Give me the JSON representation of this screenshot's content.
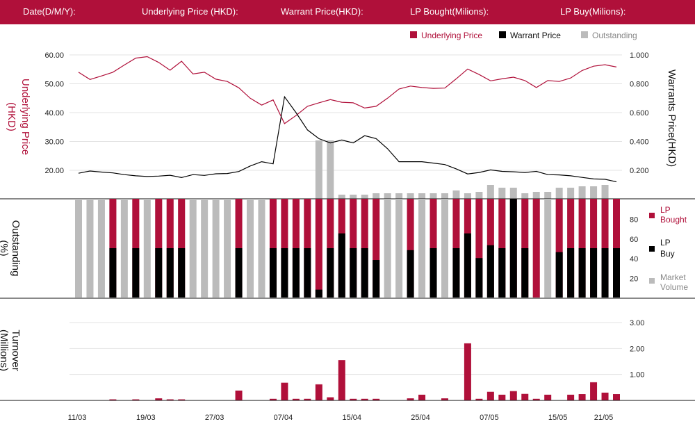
{
  "header": {
    "date_label": "Date(D/M/Y):",
    "underlying_label": "Underlying Price (HKD):",
    "warrant_label": "Warrant  Price(HKD):",
    "lp_bought_label": "LP Bought(Milions):",
    "lp_buy_label": "LP Buy(Milions):"
  },
  "colors": {
    "underlying": "#b0103a",
    "warrant": "#000000",
    "outstanding": "#bbbbbb",
    "header_bg": "#b0103a"
  },
  "chart_data": [
    {
      "type": "line",
      "name": "price-panel",
      "legend": [
        "Underlying Price",
        "Warrant  Price",
        "Outstanding"
      ],
      "legend_position": "top-right",
      "ylabel_left": "Underlying Price (HKD)",
      "ylabel_right": "Warrants  Price(HKD)",
      "yticks_left": [
        "60.00",
        "50.00",
        "40.00",
        "30.00",
        "20.00"
      ],
      "yticks_right": [
        "1.000",
        "0.800",
        "0.600",
        "0.400",
        "0.200"
      ],
      "ylim_left": [
        10,
        60
      ],
      "ylim_right": [
        0.05,
        1.0
      ],
      "series": [
        {
          "name": "Underlying Price",
          "axis": "left",
          "values": [
            54.0,
            51.5,
            52.7,
            54.0,
            56.5,
            58.9,
            59.4,
            57.4,
            54.7,
            57.8,
            53.4,
            54.0,
            51.6,
            50.8,
            48.6,
            45.0,
            42.6,
            44.4,
            36.2,
            39.0,
            42.2,
            43.4,
            44.5,
            43.6,
            43.4,
            41.6,
            42.2,
            45.0,
            48.2,
            49.2,
            48.7,
            48.4,
            48.5,
            51.7,
            55.1,
            53.2,
            51.0,
            51.7,
            52.3,
            51.1,
            48.7,
            51.1,
            50.8,
            52.0,
            54.6,
            56.1,
            56.6,
            55.8
          ]
        },
        {
          "name": "Warrant  Price",
          "axis": "right",
          "values": [
            0.18,
            0.195,
            0.188,
            0.182,
            0.17,
            0.162,
            0.157,
            0.16,
            0.166,
            0.15,
            0.17,
            0.165,
            0.176,
            0.178,
            0.192,
            0.23,
            0.26,
            0.245,
            0.71,
            0.6,
            0.48,
            0.42,
            0.39,
            0.41,
            0.39,
            0.44,
            0.42,
            0.35,
            0.26,
            0.26,
            0.26,
            0.25,
            0.24,
            0.21,
            0.175,
            0.185,
            0.203,
            0.193,
            0.19,
            0.185,
            0.193,
            0.17,
            0.168,
            0.162,
            0.151,
            0.14,
            0.138,
            0.12
          ]
        }
      ]
    },
    {
      "type": "bar",
      "name": "outstanding-panel",
      "ylabel": "Outstanding (%)",
      "yticks": [
        "80",
        "60",
        "40",
        "20"
      ],
      "ylim": [
        0,
        100
      ],
      "legend": [
        "LP Bought",
        "LP Buy",
        "Market Volume"
      ],
      "legend_position": "right",
      "market_volume": [
        100,
        100,
        100,
        100,
        100,
        100,
        100,
        100,
        100,
        100,
        100,
        100,
        100,
        100,
        100,
        100,
        100,
        100,
        100,
        100,
        100,
        100,
        100,
        100,
        100,
        100,
        100,
        100,
        100,
        100,
        100,
        100,
        100,
        100,
        100,
        100,
        100,
        100,
        100,
        100,
        100,
        100,
        100,
        100,
        100,
        100,
        100,
        100
      ],
      "lp_bought": [
        0,
        0,
        0,
        100,
        0,
        100,
        0,
        100,
        100,
        100,
        0,
        0,
        0,
        0,
        100,
        0,
        0,
        100,
        100,
        100,
        100,
        100,
        100,
        100,
        100,
        100,
        100,
        0,
        0,
        100,
        0,
        100,
        0,
        100,
        100,
        100,
        100,
        100,
        100,
        100,
        100,
        0,
        100,
        100,
        100,
        100,
        100,
        100
      ],
      "lp_buy": [
        0,
        0,
        0,
        50,
        0,
        50,
        0,
        50,
        50,
        50,
        0,
        0,
        0,
        0,
        50,
        0,
        0,
        50,
        50,
        50,
        50,
        8,
        50,
        65,
        50,
        50,
        38,
        0,
        0,
        48,
        0,
        50,
        0,
        50,
        65,
        40,
        53,
        50,
        100,
        50,
        0,
        0,
        46,
        50,
        50,
        50,
        50,
        50
      ]
    },
    {
      "type": "bar",
      "name": "turnover-panel",
      "ylabel": "Turnover (Millions)",
      "yticks": [
        "3.00",
        "2.00",
        "1.00"
      ],
      "ylim": [
        0,
        3.0
      ],
      "values": [
        0,
        0,
        0,
        0.04,
        0,
        0.04,
        0,
        0.08,
        0.04,
        0.04,
        0,
        0,
        0,
        0,
        0.38,
        0,
        0,
        0.06,
        0.68,
        0.06,
        0.06,
        0.62,
        0.12,
        1.55,
        0.06,
        0.06,
        0.06,
        0,
        0,
        0.08,
        0.22,
        0,
        0.08,
        0,
        2.2,
        0.06,
        0.33,
        0.22,
        0.36,
        0.25,
        0.06,
        0.22,
        0,
        0.22,
        0.24,
        0.7,
        0.3,
        0.24
      ]
    }
  ],
  "shared_x": {
    "date_ticks": [
      "11/03",
      "19/03",
      "27/03",
      "07/04",
      "15/04",
      "25/04",
      "07/05",
      "15/05",
      "21/05"
    ]
  },
  "outstanding_overlay": [
    0,
    0,
    0,
    0,
    0,
    0,
    0,
    0,
    0,
    0,
    0,
    0,
    0,
    0,
    0,
    0,
    0,
    0,
    0,
    0,
    0,
    0.42,
    0.42,
    0.03,
    0.03,
    0.03,
    0.04,
    0.04,
    0.04,
    0.04,
    0.04,
    0.04,
    0.04,
    0.06,
    0.04,
    0.05,
    0.1,
    0.08,
    0.08,
    0.04,
    0.05,
    0.05,
    0.08,
    0.08,
    0.09,
    0.09,
    0.1,
    0
  ]
}
